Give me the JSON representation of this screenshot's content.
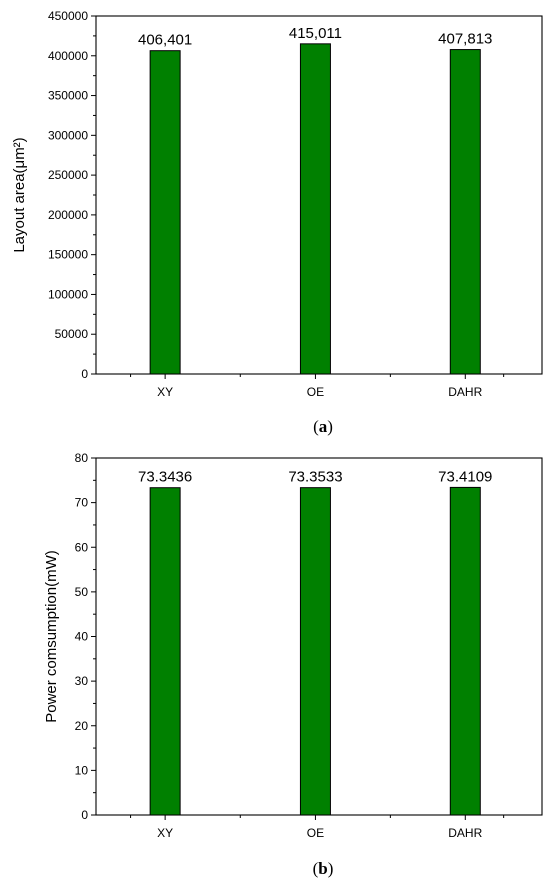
{
  "chart_data": [
    {
      "type": "bar",
      "categories": [
        "XY",
        "OE",
        "DAHR"
      ],
      "values": [
        406401,
        415011,
        407813
      ],
      "data_labels": [
        "406,401",
        "415,011",
        "407,813"
      ],
      "title": "",
      "xlabel": "",
      "ylabel": "Layout area(μm²)",
      "ylim": [
        0,
        450000
      ],
      "yticks": [
        0,
        50000,
        100000,
        150000,
        200000,
        250000,
        300000,
        350000,
        400000,
        450000
      ],
      "ytick_labels": [
        "0",
        "50000",
        "100000",
        "150000",
        "200000",
        "250000",
        "300000",
        "350000",
        "400000",
        "450000"
      ],
      "grid": false,
      "bar_color": "#008000",
      "caption": {
        "open": "(",
        "letter": "a",
        "close": ")"
      }
    },
    {
      "type": "bar",
      "categories": [
        "XY",
        "OE",
        "DAHR"
      ],
      "values": [
        73.3436,
        73.3533,
        73.4109
      ],
      "data_labels": [
        "73.3436",
        "73.3533",
        "73.4109"
      ],
      "title": "",
      "xlabel": "",
      "ylabel": "Power comsumption(mW)",
      "ylim": [
        0,
        80
      ],
      "yticks": [
        0,
        10,
        20,
        30,
        40,
        50,
        60,
        70,
        80
      ],
      "ytick_labels": [
        "0",
        "10",
        "20",
        "30",
        "40",
        "50",
        "60",
        "70",
        "80"
      ],
      "grid": false,
      "bar_color": "#008000",
      "caption": {
        "open": "(",
        "letter": "b",
        "close": ")"
      }
    }
  ]
}
